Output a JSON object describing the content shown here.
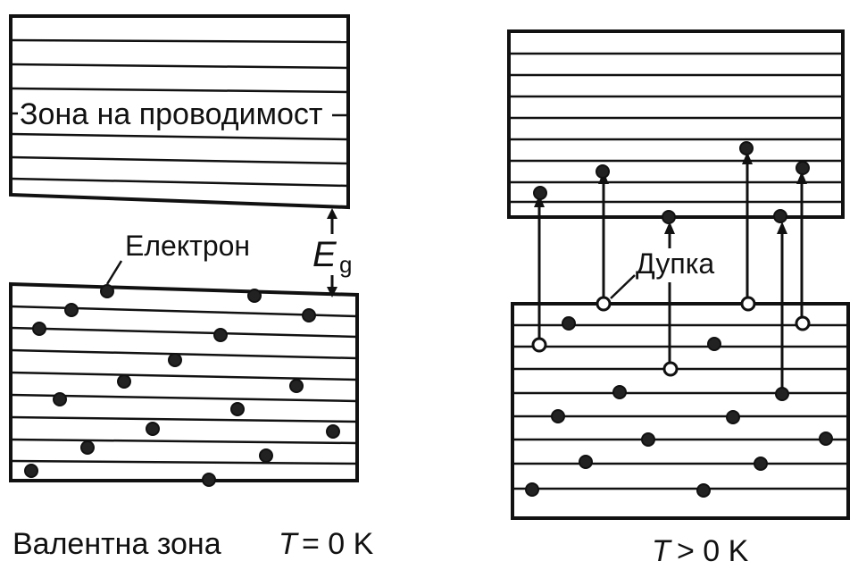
{
  "left_panel": {
    "conduction_label": "Зона на проводимост",
    "electron_label": "Електрон",
    "gap_label_main": "E",
    "gap_label_sub": "g",
    "valence_label": "Валентна зона",
    "temp_symbol": "T",
    "temp_condition": "= 0 K"
  },
  "right_panel": {
    "hole_label": "Дупка",
    "temp_symbol": "T",
    "temp_condition": "> 0 K"
  }
}
